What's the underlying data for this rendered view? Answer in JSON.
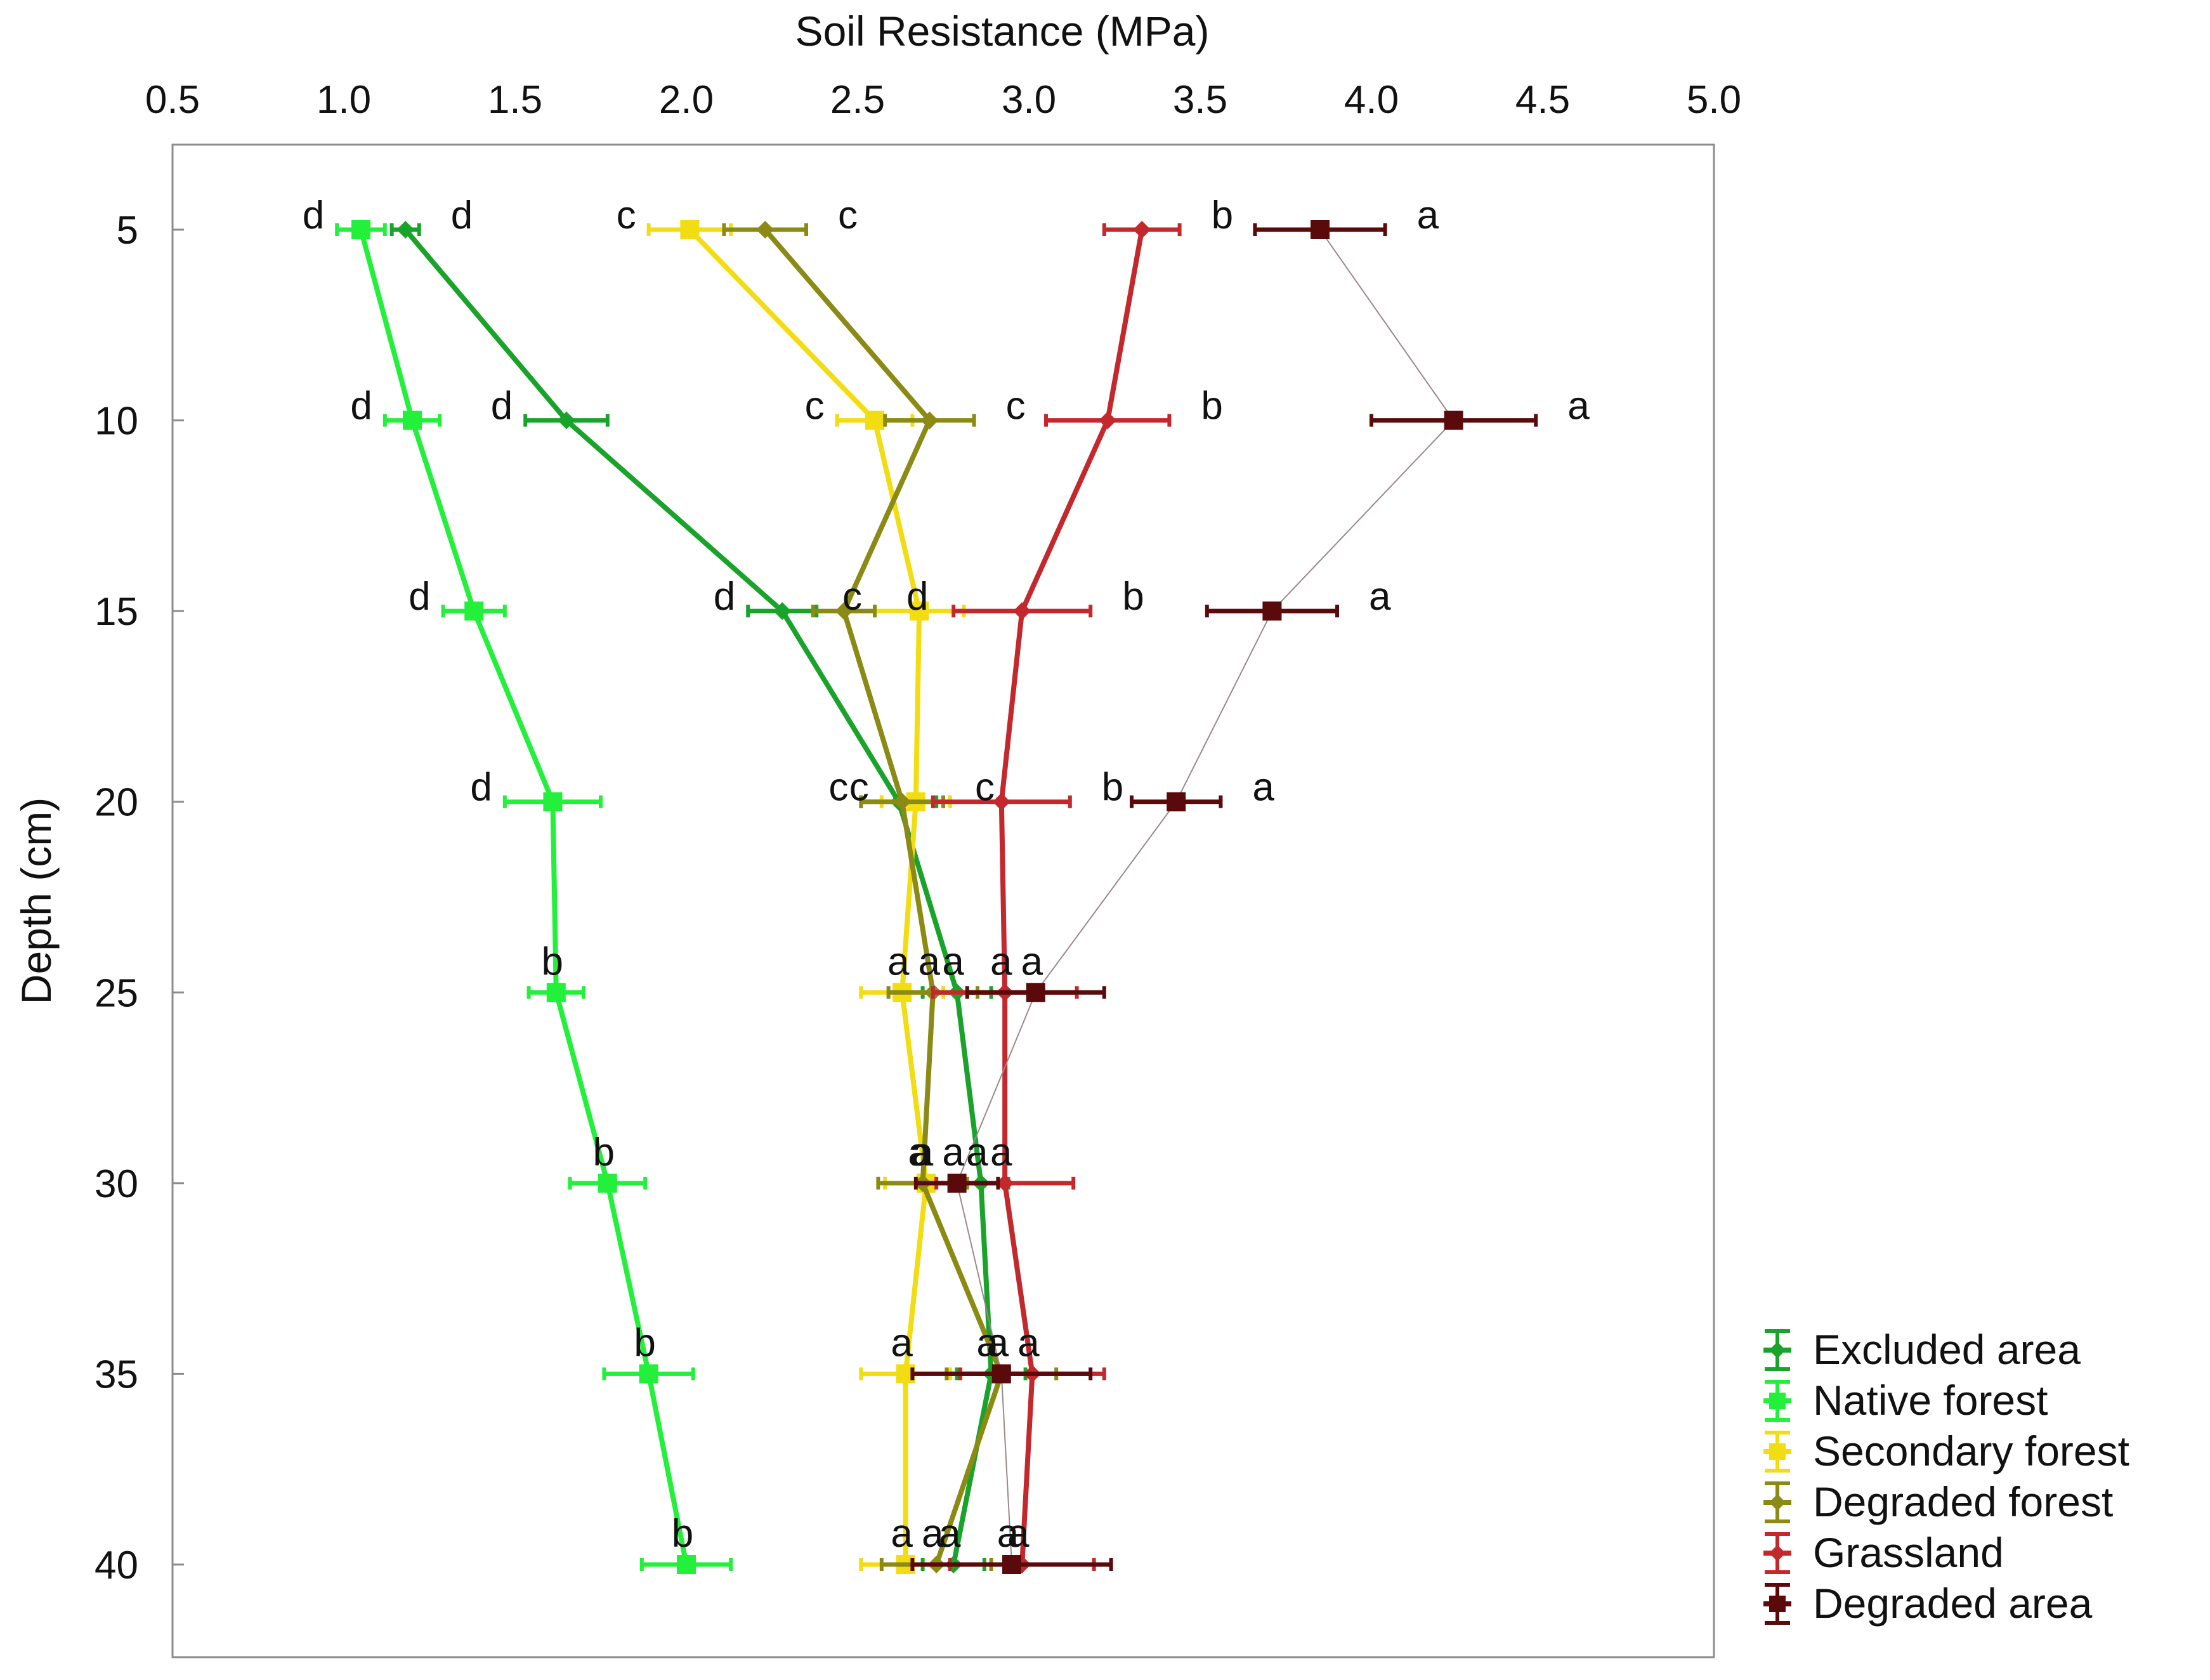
{
  "chart_data": {
    "type": "line",
    "orientation": "profile",
    "xlabel": "Soil Resistance (MPa)",
    "ylabel": "Depth (cm)",
    "xlim": [
      0.5,
      5.0
    ],
    "ylim": [
      3,
      42
    ],
    "x_ticks": [
      "0.5",
      "1.0",
      "1.5",
      "2.0",
      "2.5",
      "3.0",
      "3.5",
      "4.0",
      "4.5",
      "5.0"
    ],
    "y_ticks": [
      "5",
      "10",
      "15",
      "20",
      "25",
      "30",
      "35",
      "40"
    ],
    "depths": [
      5,
      10,
      15,
      20,
      25,
      30,
      35,
      40
    ],
    "legend_position": "bottom-right",
    "series": [
      {
        "name": "Excluded area",
        "color": "#1aa32a",
        "marker": "diamond",
        "values": [
          1.18,
          1.65,
          2.28,
          2.62,
          2.79,
          2.86,
          2.89,
          2.78
        ],
        "errors": [
          0.04,
          0.12,
          0.1,
          0.11,
          0.1,
          0.08,
          0.1,
          0.09
        ],
        "labels": [
          "d",
          "d",
          "d",
          "c",
          "a",
          "a",
          "a",
          "a"
        ]
      },
      {
        "name": "Native forest",
        "color": "#22f03a",
        "marker": "square",
        "values": [
          1.05,
          1.2,
          1.38,
          1.61,
          1.62,
          1.77,
          1.89,
          2.0
        ],
        "errors": [
          0.07,
          0.08,
          0.09,
          0.14,
          0.08,
          0.11,
          0.13,
          0.13
        ],
        "labels": [
          "d",
          "d",
          "d",
          "d",
          "b",
          "b",
          "b",
          "b"
        ]
      },
      {
        "name": "Secondary forest",
        "color": "#f2dc12",
        "marker": "square",
        "values": [
          2.01,
          2.55,
          2.68,
          2.67,
          2.63,
          2.7,
          2.64,
          2.64
        ],
        "errors": [
          0.12,
          0.11,
          0.13,
          0.1,
          0.12,
          0.12,
          0.13,
          0.13
        ],
        "labels": [
          "c",
          "c",
          "c",
          "c",
          "a",
          "a",
          "a",
          "a"
        ]
      },
      {
        "name": "Degraded forest",
        "color": "#8a8a14",
        "marker": "diamond",
        "values": [
          2.23,
          2.71,
          2.46,
          2.63,
          2.72,
          2.69,
          2.92,
          2.73
        ],
        "errors": [
          0.12,
          0.13,
          0.09,
          0.12,
          0.13,
          0.13,
          0.16,
          0.16
        ],
        "labels": [
          "c",
          "c",
          "d",
          "c",
          "a",
          "a",
          "a",
          "a"
        ]
      },
      {
        "name": "Grassland",
        "color": "#c3282d",
        "marker": "diamond",
        "values": [
          3.33,
          3.23,
          2.98,
          2.92,
          2.93,
          2.93,
          3.01,
          2.98
        ],
        "errors": [
          0.11,
          0.18,
          0.2,
          0.2,
          0.21,
          0.2,
          0.21,
          0.21
        ],
        "labels": [
          "b",
          "b",
          "b",
          "b",
          "a",
          "a",
          "a",
          "a"
        ]
      },
      {
        "name": "Degraded area",
        "color": "#5a0a0a",
        "marker": "square",
        "values": [
          3.85,
          4.24,
          3.71,
          3.43,
          3.02,
          2.79,
          2.92,
          2.95
        ],
        "errors": [
          0.19,
          0.24,
          0.19,
          0.13,
          0.2,
          0.12,
          0.26,
          0.29
        ],
        "labels": [
          "a",
          "a",
          "a",
          "a",
          "a",
          "a",
          "a",
          "a"
        ]
      }
    ]
  }
}
